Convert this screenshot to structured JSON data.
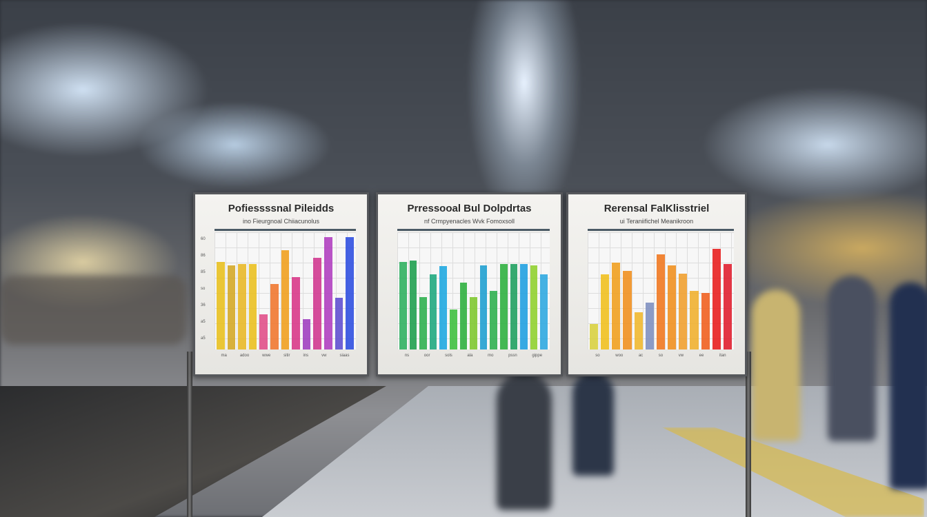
{
  "boards": [
    {
      "title": "Pofiessssnal Pileidds",
      "subtitle": "ino Fieurgnoal Chiiacunolus",
      "x_ticks": [
        "ma",
        "adoo",
        "wwe",
        "sitir",
        "ins",
        "vw",
        "siaas"
      ],
      "y_ticks": [
        "60",
        "86",
        "85",
        "so",
        "36",
        "a5",
        "a5"
      ],
      "bars": [
        {
          "level": 0.75,
          "color": "#e8c020"
        },
        {
          "level": 0.72,
          "color": "#d4a828"
        },
        {
          "level": 0.73,
          "color": "#e8b828"
        },
        {
          "level": 0.73,
          "color": "#eac020"
        },
        {
          "level": 0.3,
          "color": "#e0508a"
        },
        {
          "level": 0.56,
          "color": "#f07830"
        },
        {
          "level": 0.85,
          "color": "#f0a020"
        },
        {
          "level": 0.62,
          "color": "#d83888"
        },
        {
          "level": 0.26,
          "color": "#a040c0"
        },
        {
          "level": 0.78,
          "color": "#d03890"
        },
        {
          "level": 0.96,
          "color": "#b040c0"
        },
        {
          "level": 0.44,
          "color": "#6050d0"
        },
        {
          "level": 0.96,
          "color": "#3050e0"
        }
      ]
    },
    {
      "title": "Prressooal Bul Dolpdrtas",
      "subtitle": "nf Crmpyenacles Wvk Fomoxsoll",
      "x_ticks": [
        "ns",
        "oor",
        "sols",
        "ala",
        "mo",
        "pssn",
        "gippe"
      ],
      "y_ticks": [],
      "bars": [
        {
          "level": 0.75,
          "color": "#30b060"
        },
        {
          "level": 0.76,
          "color": "#20a050"
        },
        {
          "level": 0.45,
          "color": "#30b050"
        },
        {
          "level": 0.64,
          "color": "#20a880"
        },
        {
          "level": 0.71,
          "color": "#20a8e0"
        },
        {
          "level": 0.34,
          "color": "#40c040"
        },
        {
          "level": 0.57,
          "color": "#30b040"
        },
        {
          "level": 0.45,
          "color": "#80c830"
        },
        {
          "level": 0.72,
          "color": "#20a0d0"
        },
        {
          "level": 0.5,
          "color": "#30b050"
        },
        {
          "level": 0.73,
          "color": "#30b040"
        },
        {
          "level": 0.73,
          "color": "#20a060"
        },
        {
          "level": 0.73,
          "color": "#20a0e0"
        },
        {
          "level": 0.72,
          "color": "#90d030"
        },
        {
          "level": 0.64,
          "color": "#30a8e0"
        }
      ]
    },
    {
      "title": "Rerensal FalKlisstriel",
      "subtitle": "ui Teraniifichel Meanikroon",
      "x_ticks": [
        "so",
        "woo",
        "ac",
        "so",
        "vw",
        "ee",
        "itan"
      ],
      "y_ticks": [],
      "bars": [
        {
          "level": 0.22,
          "color": "#d8d040"
        },
        {
          "level": 0.64,
          "color": "#f0c020"
        },
        {
          "level": 0.74,
          "color": "#f0a020"
        },
        {
          "level": 0.67,
          "color": "#f09020"
        },
        {
          "level": 0.32,
          "color": "#f0b830"
        },
        {
          "level": 0.4,
          "color": "#8090c0"
        },
        {
          "level": 0.81,
          "color": "#f07820"
        },
        {
          "level": 0.72,
          "color": "#f09020"
        },
        {
          "level": 0.65,
          "color": "#f0a030"
        },
        {
          "level": 0.5,
          "color": "#f0b030"
        },
        {
          "level": 0.48,
          "color": "#f06020"
        },
        {
          "level": 0.86,
          "color": "#e82020"
        },
        {
          "level": 0.73,
          "color": "#e02030"
        }
      ]
    }
  ]
}
